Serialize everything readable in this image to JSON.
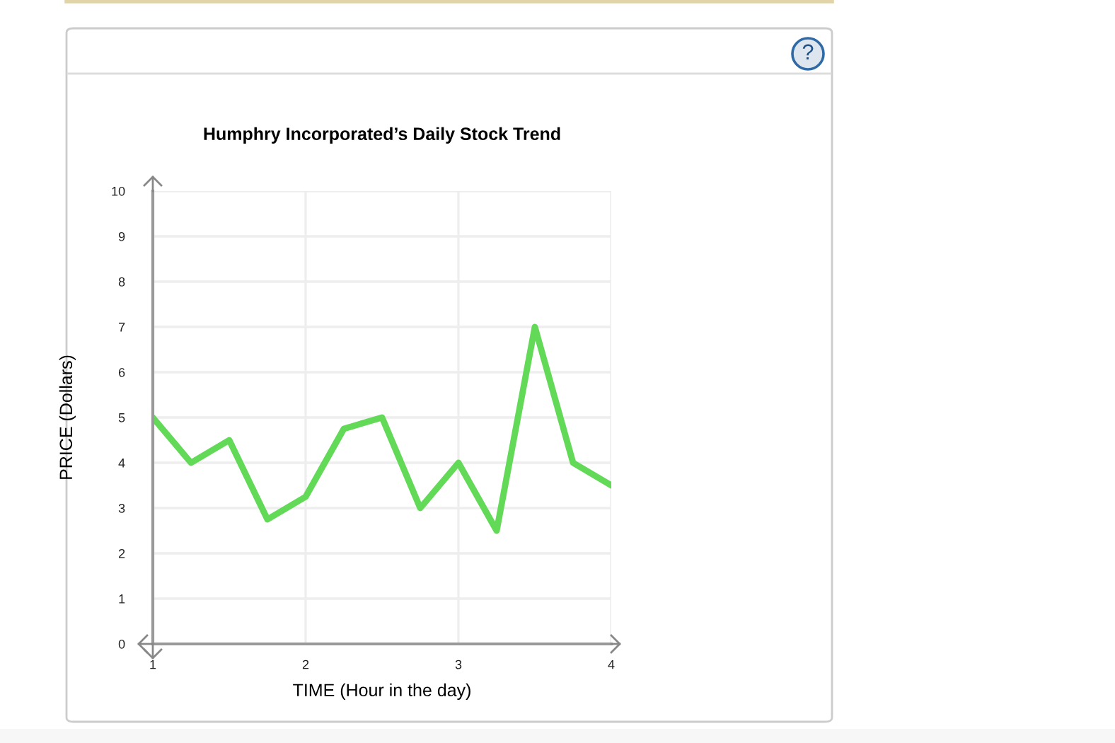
{
  "chart_data": {
    "type": "line",
    "title": "Humphry Incorporated’s Daily Stock Trend",
    "xlabel": "TIME (Hour in the day)",
    "ylabel": "PRICE (Dollars)",
    "x": [
      1,
      1.25,
      1.5,
      1.75,
      2,
      2.25,
      2.5,
      2.75,
      3,
      3.25,
      3.5,
      3.75,
      4
    ],
    "series": [
      {
        "color": "#62d957",
        "values": [
          5,
          4,
          4.5,
          2.75,
          3.25,
          4.75,
          5,
          3,
          4,
          2.5,
          7,
          4,
          3.5
        ]
      }
    ],
    "xlim": [
      1,
      4
    ],
    "ylim": [
      0,
      10
    ],
    "xticks": [
      1,
      2,
      3,
      4
    ],
    "yticks": [
      0,
      1,
      2,
      3,
      4,
      5,
      6,
      7,
      8,
      9,
      10
    ],
    "grid": true,
    "marker": "none",
    "line_style": "solid",
    "annotations": [
      "?"
    ]
  }
}
